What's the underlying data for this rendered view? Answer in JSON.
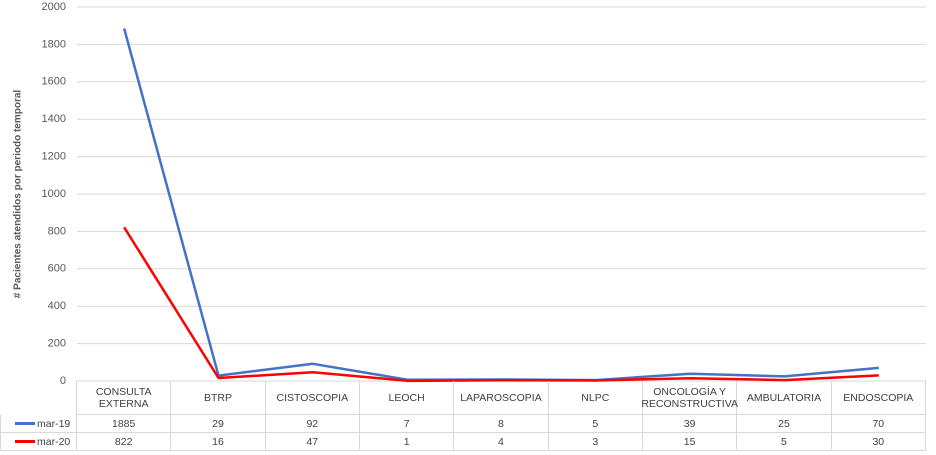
{
  "chart_data": {
    "type": "line",
    "y_label": "# Pacientes atendidos por periodo temporal",
    "categories": [
      "CONSULTA EXTERNA",
      "BTRP",
      "CISTOSCOPIA",
      "LEOCH",
      "LAPAROSCOPIA",
      "NLPC",
      "ONCOLOGÍA Y RECONSTRUCTIVA",
      "AMBULATORIA",
      "ENDOSCOPIA"
    ],
    "series": [
      {
        "name": "mar-19",
        "color": "#4472c4",
        "values": [
          1885,
          29,
          92,
          7,
          8,
          5,
          39,
          25,
          70
        ]
      },
      {
        "name": "mar-20",
        "color": "#ff0000",
        "values": [
          822,
          16,
          47,
          1,
          4,
          3,
          15,
          5,
          30
        ]
      }
    ],
    "ylim": [
      0,
      2000
    ],
    "yticks": [
      0,
      200,
      400,
      600,
      800,
      1000,
      1200,
      1400,
      1600,
      1800,
      2000
    ],
    "grid": true
  }
}
